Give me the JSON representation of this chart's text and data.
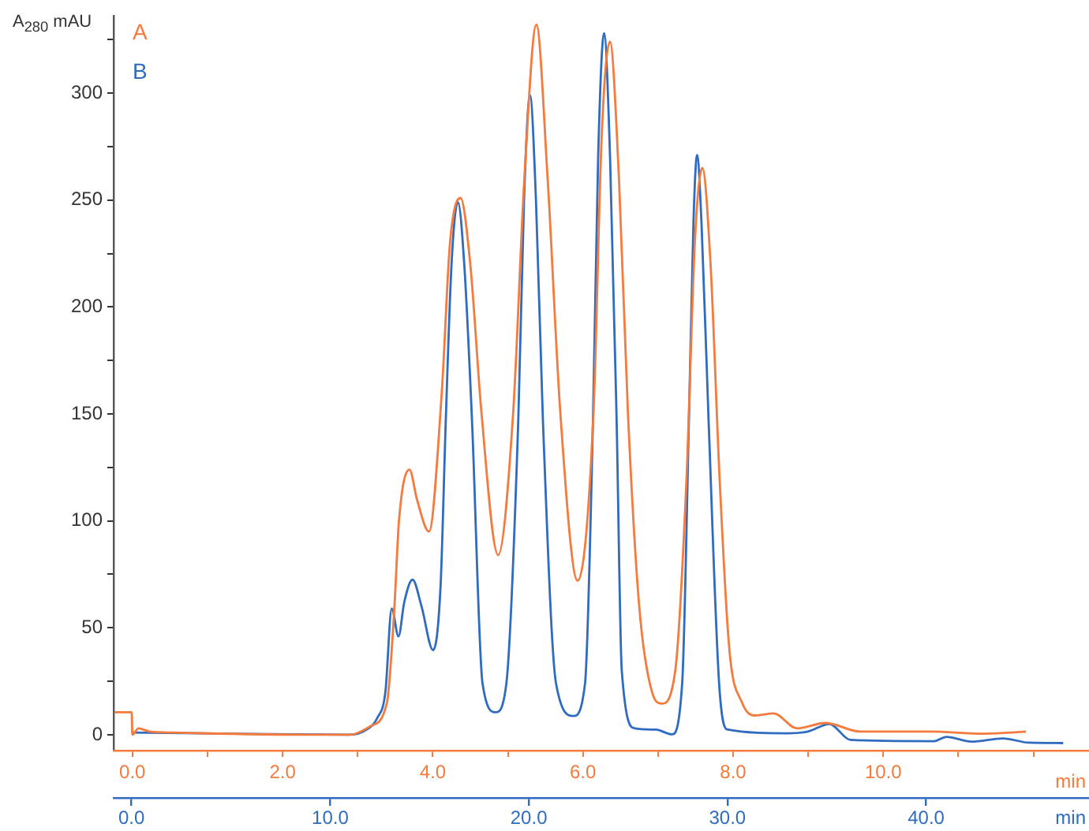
{
  "chart_data": {
    "type": "line",
    "ylabel": "A$_{280}$ mAU",
    "xlabel": "min",
    "x2label": "min",
    "xlim": [
      -0.9,
      48.2
    ],
    "x2lim": [
      -0.25,
      12.74
    ],
    "ylim": [
      -7.4,
      336
    ],
    "xticks": [
      {
        "value": 0,
        "label": "0.0"
      },
      {
        "value": 10,
        "label": "10.0"
      },
      {
        "value": 20,
        "label": "20.0"
      },
      {
        "value": 30,
        "label": "30.0"
      },
      {
        "value": 40,
        "label": "40.0"
      }
    ],
    "x2ticks": [
      {
        "value": 0,
        "label": "0.0"
      },
      {
        "value": 1,
        "label": null
      },
      {
        "value": 2,
        "label": "2.0"
      },
      {
        "value": 3,
        "label": null
      },
      {
        "value": 4,
        "label": "4.0"
      },
      {
        "value": 5,
        "label": null
      },
      {
        "value": 6,
        "label": "6.0"
      },
      {
        "value": 7,
        "label": null
      },
      {
        "value": 8,
        "label": "8.0"
      },
      {
        "value": 9,
        "label": null
      },
      {
        "value": 10,
        "label": "10.0"
      },
      {
        "value": 11,
        "label": null
      },
      {
        "value": 12,
        "label": null
      }
    ],
    "yticks": [
      0,
      {
        "value": 25,
        "label": null
      },
      50,
      {
        "value": 75,
        "label": null
      },
      100,
      {
        "value": 125,
        "label": null
      },
      150,
      {
        "value": 175,
        "label": null
      },
      200,
      {
        "value": 225,
        "label": null
      },
      250,
      {
        "value": 275,
        "label": null
      },
      300,
      {
        "value": 325,
        "label": null
      }
    ],
    "grid": false,
    "legend": "top left",
    "marker": "none",
    "line_style": "solid",
    "series": [
      {
        "name": "A",
        "color": "#f47a3d",
        "axis": "x2",
        "x": [
          -0.24,
          -0.01,
          0,
          0.08,
          0.23,
          0.55,
          2.44,
          2.9,
          3.17,
          3.39,
          3.49,
          3.55,
          3.69,
          3.79,
          3.95,
          4.12,
          4.23,
          4.37,
          4.5,
          4.65,
          4.87,
          5.07,
          5.22,
          5.38,
          5.53,
          5.7,
          5.93,
          6.14,
          6.25,
          6.36,
          6.48,
          6.6,
          6.75,
          6.92,
          7.05,
          7.23,
          7.38,
          7.49,
          7.59,
          7.7,
          7.82,
          7.95,
          8.12,
          8.29,
          8.54,
          8.85,
          9.23,
          9.69,
          10.64,
          11.27,
          11.69,
          11.9
        ],
        "values": [
          10.5,
          10.5,
          0,
          3,
          1.5,
          1,
          0,
          0,
          4,
          15,
          60,
          100,
          124,
          110,
          95,
          160,
          230,
          251,
          220,
          150,
          84,
          150,
          260,
          332,
          260,
          150,
          72,
          150,
          280,
          324,
          260,
          150,
          60,
          20,
          14.6,
          30,
          120,
          230,
          265,
          220,
          120,
          40,
          15,
          9,
          10,
          3,
          5.5,
          1.5,
          1.5,
          0.5,
          1,
          1.5
        ]
      },
      {
        "name": "B",
        "color": "#2f6bc0",
        "x": [
          0,
          5.24,
          10.95,
          11.75,
          12.38,
          12.78,
          13.1,
          13.44,
          13.73,
          14.15,
          14.6,
          15.18,
          15.56,
          15.82,
          16.11,
          16.43,
          16.75,
          17.14,
          17.67,
          18.33,
          18.87,
          19.47,
          19.76,
          20.06,
          20.36,
          20.71,
          21.37,
          22.25,
          22.83,
          23.23,
          23.49,
          23.79,
          24.09,
          24.42,
          24.68,
          25.34,
          26.4,
          27.2,
          27.72,
          28.06,
          28.29,
          28.47,
          28.69,
          29.05,
          29.58,
          29.98,
          33.02,
          34.05,
          35.13,
          36.19,
          40.4,
          41.03,
          42.28,
          43.87,
          45.16,
          46.9
        ],
        "values": [
          1,
          0.5,
          0,
          2,
          8,
          20,
          59,
          46,
          62,
          72.5,
          60,
          39.6,
          70,
          147,
          220,
          249,
          220,
          147,
          24,
          10.5,
          24,
          147,
          250,
          299,
          250,
          147,
          24,
          8.8,
          24,
          147,
          270,
          328,
          270,
          147,
          30,
          3,
          2.4,
          0.2,
          24,
          147,
          240,
          271,
          240,
          147,
          24,
          2.5,
          0.7,
          1.5,
          5,
          -2.4,
          -3,
          -1,
          -3.2,
          -1.7,
          -3.7,
          -3.9
        ]
      }
    ]
  }
}
